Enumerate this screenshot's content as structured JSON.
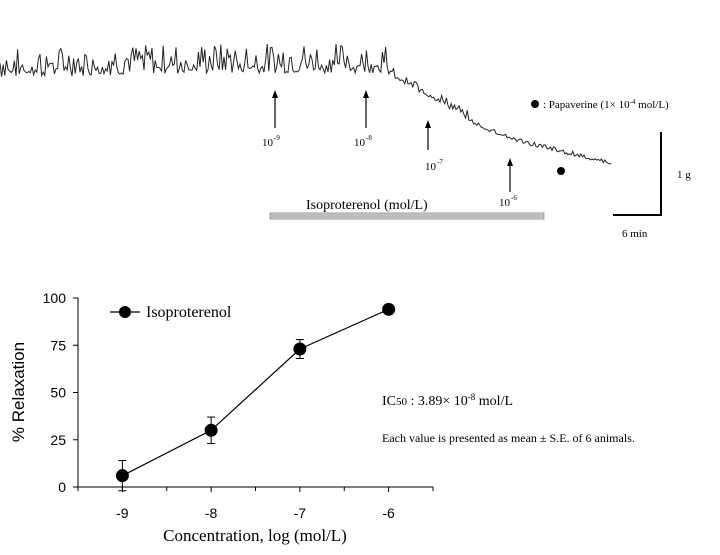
{
  "trace": {
    "doses": [
      {
        "base": "10",
        "exp": "-9"
      },
      {
        "base": "10",
        "exp": "-8"
      },
      {
        "base": "10",
        "exp": "-7"
      },
      {
        "base": "10",
        "exp": "-6"
      }
    ],
    "papaverine_label": ": Papaverine (1",
    "papaverine_times": "×",
    "papaverine_base": " 10",
    "papaverine_exp": "-4",
    "papaverine_unit": " mol/L)",
    "drug_bar_label": "Isoproterenol  (mol/L)",
    "scale_vertical": "1 g",
    "scale_horizontal": "6 min"
  },
  "annotations": {
    "ic50_prefix": "IC",
    "ic50_sub": "50",
    "ic50_value": " : 3.89",
    "ic50_times": "×",
    "ic50_base": " 10",
    "ic50_exp": "-8",
    "ic50_unit": "  mol/L",
    "note": "Each value is presented as mean ± S.E. of 6 animals."
  },
  "chart_data": {
    "type": "line",
    "title": "",
    "xlabel": "Concentration,  log (mol/L)",
    "ylabel": "% Relaxation",
    "x": [
      -9,
      -8,
      -7,
      -6
    ],
    "xticks": [
      "-9",
      "-8",
      "-7",
      "-6"
    ],
    "yticks": [
      "0",
      "25",
      "50",
      "75",
      "100"
    ],
    "xlim": [
      -9.5,
      -5.5
    ],
    "ylim": [
      0,
      100
    ],
    "grid": false,
    "legend": "top-left",
    "series": [
      {
        "name": "Isoproterenol",
        "values": [
          6,
          30,
          73,
          94
        ],
        "errors": [
          8,
          7,
          5,
          1
        ],
        "color": "#000000"
      }
    ]
  }
}
